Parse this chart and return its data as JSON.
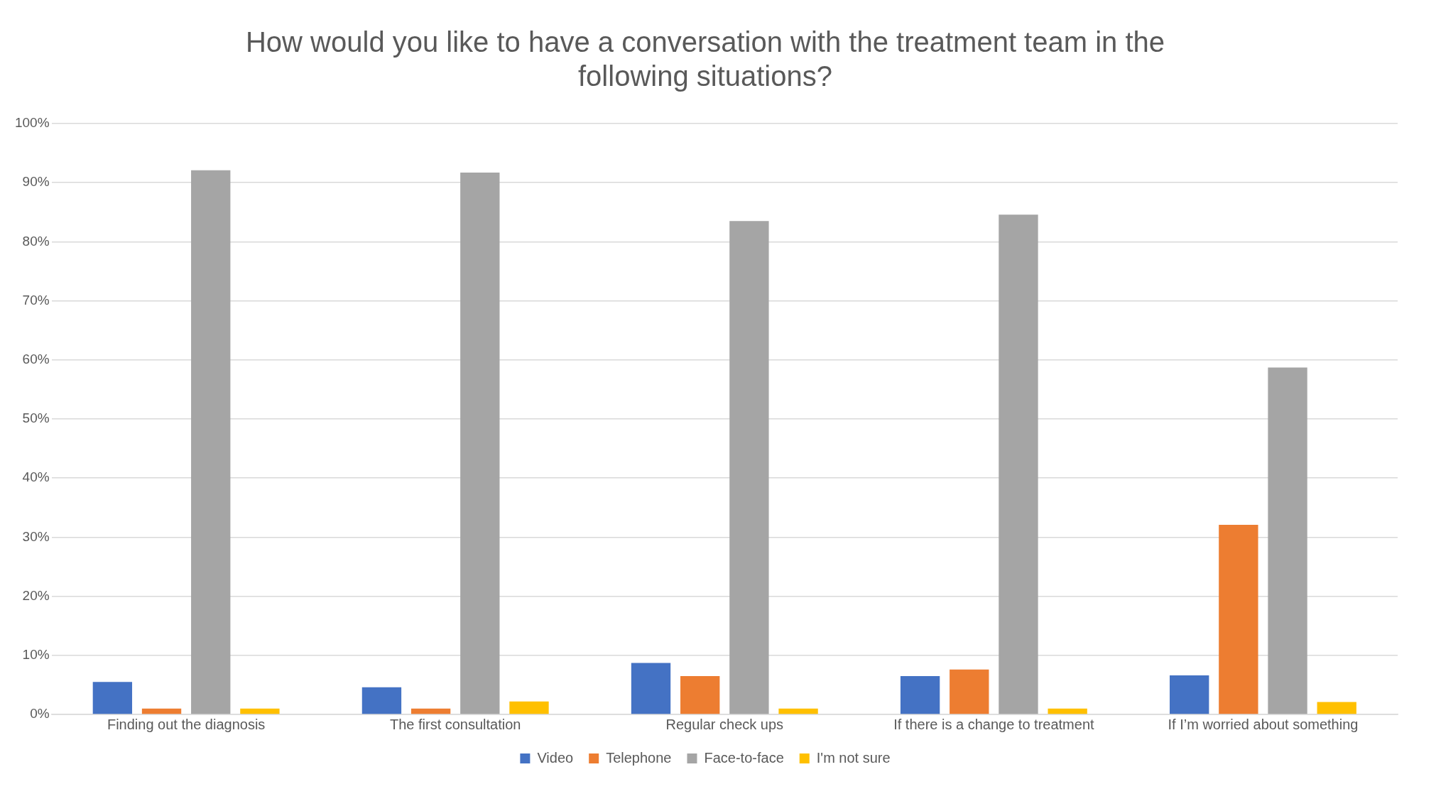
{
  "chart_data": {
    "type": "bar",
    "title": "How would you like to have a conversation with the treatment team in the following situations?",
    "categories": [
      "Finding out the diagnosis",
      "The first consultation",
      "Regular check ups",
      "If there is a change to treatment",
      "If I’m worried about something"
    ],
    "series": [
      {
        "name": "Video",
        "color": "#4472c4",
        "values": [
          5.5,
          4.6,
          8.7,
          6.5,
          6.6
        ]
      },
      {
        "name": "Telephone",
        "color": "#ed7d31",
        "values": [
          1,
          1,
          6.5,
          7.6,
          32.1
        ]
      },
      {
        "name": "Face-to-face",
        "color": "#a5a5a5",
        "values": [
          92.1,
          91.7,
          83.5,
          84.6,
          58.7
        ]
      },
      {
        "name": "I'm not sure",
        "color": "#ffc000",
        "values": [
          1,
          2.2,
          1,
          1,
          2.1
        ]
      }
    ],
    "ylim": [
      0,
      100
    ],
    "yticks": [
      {
        "value": 0,
        "label": "0%"
      },
      {
        "value": 10,
        "label": "10%"
      },
      {
        "value": 20,
        "label": "20%"
      },
      {
        "value": 30,
        "label": "30%"
      },
      {
        "value": 40,
        "label": "40%"
      },
      {
        "value": 50,
        "label": "50%"
      },
      {
        "value": 60,
        "label": "60%"
      },
      {
        "value": 70,
        "label": "70%"
      },
      {
        "value": 80,
        "label": "80%"
      },
      {
        "value": 90,
        "label": "90%"
      },
      {
        "value": 100,
        "label": "100%"
      }
    ],
    "grid": "y",
    "legend": "bottom"
  }
}
